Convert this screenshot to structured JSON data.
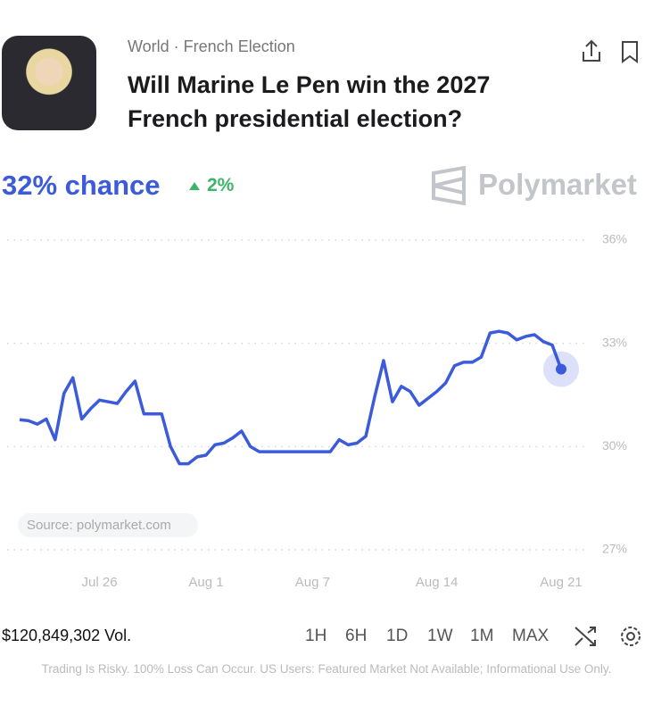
{
  "header": {
    "breadcrumb": "World · French Election",
    "title": "Will Marine Le Pen win the 2027 French presidential election?",
    "chance": "32% chance",
    "change": "2%",
    "brand": "Polymarket"
  },
  "chart_data": {
    "type": "line",
    "color": "#3b5bdb",
    "source": "Source: polymarket.com",
    "categories": [
      null,
      null,
      null,
      null,
      null,
      null,
      null,
      null,
      null,
      "Jul 26",
      null,
      null,
      null,
      null,
      null,
      null,
      null,
      null,
      null,
      null,
      null,
      "Aug 1",
      null,
      null,
      null,
      null,
      null,
      null,
      null,
      null,
      null,
      null,
      null,
      "Aug 7",
      null,
      null,
      null,
      null,
      null,
      null,
      null,
      null,
      null,
      null,
      null,
      null,
      null,
      "Aug 14",
      null,
      null,
      null,
      null,
      null,
      null,
      null,
      null,
      null,
      null,
      null,
      null,
      null,
      "Aug 21"
    ],
    "values": [
      30.78,
      30.75,
      30.65,
      30.8,
      30.2,
      31.55,
      32.0,
      30.8,
      31.1,
      31.35,
      31.3,
      31.25,
      31.6,
      31.9,
      30.95,
      30.95,
      30.95,
      30.0,
      29.5,
      29.5,
      29.7,
      29.75,
      30.05,
      30.1,
      30.25,
      30.45,
      30.0,
      29.85,
      29.85,
      29.85,
      29.85,
      29.85,
      29.85,
      29.85,
      29.85,
      29.85,
      30.2,
      30.05,
      30.1,
      30.3,
      31.45,
      32.5,
      31.3,
      31.75,
      31.6,
      31.2,
      31.4,
      31.6,
      31.85,
      32.35,
      32.45,
      32.45,
      32.6,
      33.3,
      33.35,
      33.3,
      33.1,
      33.2,
      33.25,
      33.05,
      32.95,
      32.25
    ],
    "ylim": [
      27,
      36
    ],
    "yticks": [
      {
        "value": 36,
        "label": "36%"
      },
      {
        "value": 33,
        "label": "33%"
      },
      {
        "value": 30,
        "label": "30%"
      },
      {
        "value": 27,
        "label": "27%"
      }
    ],
    "grid": true
  },
  "footer": {
    "volume": "$120,849,302 Vol.",
    "ranges": [
      "1H",
      "6H",
      "1D",
      "1W",
      "1M",
      "MAX"
    ],
    "disclaimer": "Trading Is Risky. 100% Loss Can Occur. US Users: Featured Market Not Available; Informational Use Only."
  }
}
